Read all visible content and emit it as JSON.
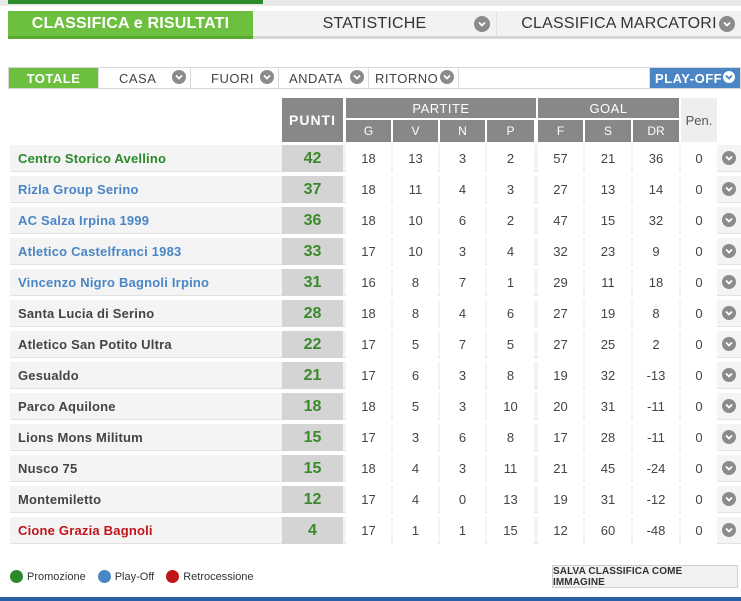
{
  "top_tabs": [
    {
      "label": "CLASSIFICA e RISULTATI",
      "active": true
    },
    {
      "label": "STATISTICHE",
      "active": false
    },
    {
      "label": "CLASSIFICA MARCATORI",
      "active": false
    }
  ],
  "sub_tabs": [
    {
      "label": "TOTALE",
      "active": true
    },
    {
      "label": "CASA"
    },
    {
      "label": "FUORI"
    },
    {
      "label": "ANDATA"
    },
    {
      "label": "RITORNO"
    },
    {
      "label": ""
    },
    {
      "label": "PLAY-OFF"
    }
  ],
  "header": {
    "punti": "PUNTI",
    "partite": "PARTITE",
    "partite_cols": [
      "G",
      "V",
      "N",
      "P"
    ],
    "goal": "GOAL",
    "goal_cols": [
      "F",
      "S",
      "DR"
    ],
    "pen": "Pen."
  },
  "colors": {
    "promozione": "#2a8a2a",
    "playoff": "#4a86c5",
    "retrocessione": "#c0141a",
    "default": "#444444"
  },
  "rows": [
    {
      "team": "Centro Storico Avellino",
      "status": "promozione",
      "punti": "42",
      "g": "18",
      "v": "13",
      "n": "3",
      "p": "2",
      "f": "57",
      "s": "21",
      "dr": "36",
      "pen": "0"
    },
    {
      "team": "Rizla Group Serino",
      "status": "playoff",
      "punti": "37",
      "g": "18",
      "v": "11",
      "n": "4",
      "p": "3",
      "f": "27",
      "s": "13",
      "dr": "14",
      "pen": "0"
    },
    {
      "team": "AC Salza Irpina 1999",
      "status": "playoff",
      "punti": "36",
      "g": "18",
      "v": "10",
      "n": "6",
      "p": "2",
      "f": "47",
      "s": "15",
      "dr": "32",
      "pen": "0"
    },
    {
      "team": "Atletico Castelfranci 1983",
      "status": "playoff",
      "punti": "33",
      "g": "17",
      "v": "10",
      "n": "3",
      "p": "4",
      "f": "32",
      "s": "23",
      "dr": "9",
      "pen": "0"
    },
    {
      "team": "Vincenzo Nigro Bagnoli Irpino",
      "status": "playoff",
      "punti": "31",
      "g": "16",
      "v": "8",
      "n": "7",
      "p": "1",
      "f": "29",
      "s": "11",
      "dr": "18",
      "pen": "0"
    },
    {
      "team": "Santa Lucia di Serino",
      "status": "default",
      "punti": "28",
      "g": "18",
      "v": "8",
      "n": "4",
      "p": "6",
      "f": "27",
      "s": "19",
      "dr": "8",
      "pen": "0"
    },
    {
      "team": "Atletico San Potito Ultra",
      "status": "default",
      "punti": "22",
      "g": "17",
      "v": "5",
      "n": "7",
      "p": "5",
      "f": "27",
      "s": "25",
      "dr": "2",
      "pen": "0"
    },
    {
      "team": "Gesualdo",
      "status": "default",
      "punti": "21",
      "g": "17",
      "v": "6",
      "n": "3",
      "p": "8",
      "f": "19",
      "s": "32",
      "dr": "-13",
      "pen": "0"
    },
    {
      "team": "Parco Aquilone",
      "status": "default",
      "punti": "18",
      "g": "18",
      "v": "5",
      "n": "3",
      "p": "10",
      "f": "20",
      "s": "31",
      "dr": "-11",
      "pen": "0"
    },
    {
      "team": "Lions Mons Militum",
      "status": "default",
      "punti": "15",
      "g": "17",
      "v": "3",
      "n": "6",
      "p": "8",
      "f": "17",
      "s": "28",
      "dr": "-11",
      "pen": "0"
    },
    {
      "team": "Nusco 75",
      "status": "default",
      "punti": "15",
      "g": "18",
      "v": "4",
      "n": "3",
      "p": "11",
      "f": "21",
      "s": "45",
      "dr": "-24",
      "pen": "0"
    },
    {
      "team": "Montemiletto",
      "status": "default",
      "punti": "12",
      "g": "17",
      "v": "4",
      "n": "0",
      "p": "13",
      "f": "19",
      "s": "31",
      "dr": "-12",
      "pen": "0"
    },
    {
      "team": "Cione Grazia Bagnoli",
      "status": "retrocessione",
      "punti": "4",
      "g": "17",
      "v": "1",
      "n": "1",
      "p": "15",
      "f": "12",
      "s": "60",
      "dr": "-48",
      "pen": "0"
    }
  ],
  "legend": {
    "promozione": "Promozione",
    "playoff": "Play-Off",
    "retrocessione": "Retrocessione"
  },
  "save_button": "SALVA CLASSIFICA COME IMMAGINE"
}
